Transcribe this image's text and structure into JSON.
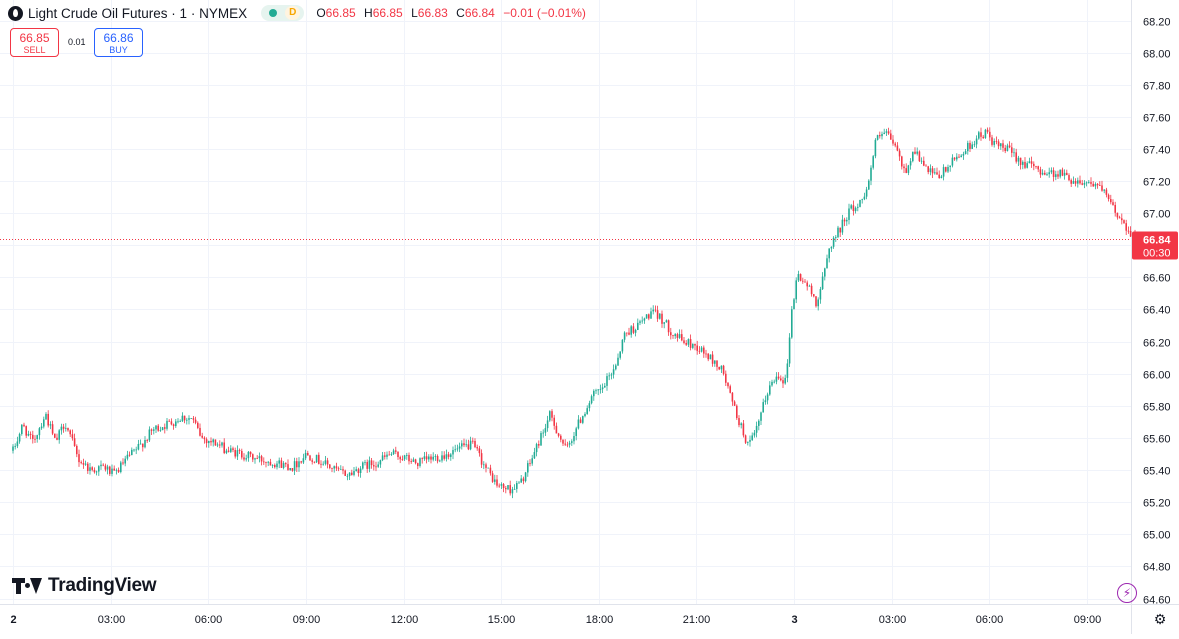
{
  "legend": {
    "symbol_title": "Light Crude Oil Futures · 1 · NYMEX",
    "badge_d": "D",
    "o_label": "O",
    "o_value": "66.85",
    "h_label": "H",
    "h_value": "66.85",
    "l_label": "L",
    "l_value": "66.83",
    "c_label": "C",
    "c_value": "66.84",
    "change": "−0.01 (−0.01%)"
  },
  "trade": {
    "sell_price": "66.85",
    "sell_label": "SELL",
    "buy_price": "66.86",
    "buy_label": "BUY",
    "spread": "0.01"
  },
  "branding": {
    "logo_text": "TradingView"
  },
  "icons": {
    "logo": "tradingview-logo-icon",
    "symbol": "oil-drop-icon",
    "status": "market-open-dot-icon",
    "bolt": "lightning-bolt-icon",
    "settings": "gear-icon"
  },
  "colors": {
    "up": "#22ab94",
    "down": "#f23645",
    "sell": "#f23645",
    "buy": "#2962ff",
    "grid": "#f0f3fa",
    "text": "#131722",
    "bolt": "#9c27b0"
  },
  "price_label": {
    "price": "66.84",
    "countdown": "00:30"
  },
  "chart_data": {
    "type": "candlestick",
    "title": "Light Crude Oil Futures · 1 · NYMEX",
    "interval": "1 minute",
    "y_ticks": [
      "68.20",
      "68.00",
      "67.80",
      "67.60",
      "67.40",
      "67.20",
      "67.00",
      "66.80",
      "66.60",
      "66.40",
      "66.20",
      "66.00",
      "65.80",
      "65.60",
      "65.40",
      "65.20",
      "65.00",
      "64.80",
      "64.60"
    ],
    "ylim": [
      64.57,
      68.27
    ],
    "x_ticks": [
      {
        "label": "2",
        "hour": 0,
        "bold": true
      },
      {
        "label": "03:00",
        "hour": 3
      },
      {
        "label": "06:00",
        "hour": 6
      },
      {
        "label": "09:00",
        "hour": 9
      },
      {
        "label": "12:00",
        "hour": 12
      },
      {
        "label": "15:00",
        "hour": 15
      },
      {
        "label": "18:00",
        "hour": 18
      },
      {
        "label": "21:00",
        "hour": 21
      },
      {
        "label": "3",
        "hour": 24,
        "bold": true
      },
      {
        "label": "03:00",
        "hour": 27
      },
      {
        "label": "06:00",
        "hour": 30
      },
      {
        "label": "09:00",
        "hour": 33
      }
    ],
    "xlim_hours": [
      -0.3,
      35.2
    ],
    "last_hour": 34.5,
    "last_price": 66.84,
    "path_points": [
      [
        0,
        65.52
      ],
      [
        0.3,
        65.68
      ],
      [
        0.6,
        65.57
      ],
      [
        1.0,
        65.75
      ],
      [
        1.3,
        65.57
      ],
      [
        1.6,
        65.7
      ],
      [
        2.0,
        65.47
      ],
      [
        2.4,
        65.4
      ],
      [
        2.8,
        65.42
      ],
      [
        3.1,
        65.37
      ],
      [
        3.5,
        65.47
      ],
      [
        3.9,
        65.55
      ],
      [
        4.3,
        65.65
      ],
      [
        4.9,
        65.7
      ],
      [
        5.2,
        65.73
      ],
      [
        5.5,
        65.72
      ],
      [
        5.8,
        65.6
      ],
      [
        6.2,
        65.57
      ],
      [
        6.6,
        65.52
      ],
      [
        7.0,
        65.5
      ],
      [
        7.5,
        65.47
      ],
      [
        8.0,
        65.45
      ],
      [
        8.6,
        65.42
      ],
      [
        9.0,
        65.5
      ],
      [
        9.5,
        65.45
      ],
      [
        9.9,
        65.4
      ],
      [
        10.3,
        65.37
      ],
      [
        10.7,
        65.42
      ],
      [
        11.2,
        65.45
      ],
      [
        11.6,
        65.5
      ],
      [
        12.0,
        65.48
      ],
      [
        12.4,
        65.44
      ],
      [
        12.8,
        65.47
      ],
      [
        13.2,
        65.49
      ],
      [
        13.7,
        65.53
      ],
      [
        14.1,
        65.56
      ],
      [
        14.3,
        65.5
      ],
      [
        14.5,
        65.42
      ],
      [
        14.9,
        65.3
      ],
      [
        15.3,
        65.28
      ],
      [
        15.6,
        65.32
      ],
      [
        15.9,
        65.45
      ],
      [
        16.2,
        65.6
      ],
      [
        16.5,
        65.74
      ],
      [
        17.0,
        65.52
      ],
      [
        17.3,
        65.66
      ],
      [
        17.8,
        65.86
      ],
      [
        18.1,
        65.9
      ],
      [
        18.5,
        66.05
      ],
      [
        18.8,
        66.25
      ],
      [
        19.2,
        66.3
      ],
      [
        19.6,
        66.38
      ],
      [
        19.9,
        66.35
      ],
      [
        20.2,
        66.27
      ],
      [
        20.6,
        66.2
      ],
      [
        21.0,
        66.17
      ],
      [
        21.4,
        66.1
      ],
      [
        21.8,
        66.02
      ],
      [
        22.1,
        65.82
      ],
      [
        22.4,
        65.65
      ],
      [
        22.6,
        65.55
      ],
      [
        22.8,
        65.62
      ],
      [
        23.2,
        65.9
      ],
      [
        23.5,
        66.0
      ],
      [
        23.75,
        65.95
      ],
      [
        23.9,
        66.35
      ],
      [
        24.1,
        66.62
      ],
      [
        24.4,
        66.55
      ],
      [
        24.7,
        66.44
      ],
      [
        24.9,
        66.6
      ],
      [
        25.1,
        66.8
      ],
      [
        25.4,
        66.9
      ],
      [
        25.7,
        67.02
      ],
      [
        26.0,
        67.05
      ],
      [
        26.3,
        67.2
      ],
      [
        26.5,
        67.45
      ],
      [
        26.8,
        67.5
      ],
      [
        27.1,
        67.42
      ],
      [
        27.4,
        67.25
      ],
      [
        27.7,
        67.4
      ],
      [
        28.0,
        67.28
      ],
      [
        28.4,
        67.22
      ],
      [
        28.7,
        67.28
      ],
      [
        29.0,
        67.35
      ],
      [
        29.3,
        67.4
      ],
      [
        29.6,
        67.47
      ],
      [
        29.9,
        67.5
      ],
      [
        30.2,
        67.42
      ],
      [
        30.6,
        67.39
      ],
      [
        31.0,
        67.32
      ],
      [
        31.4,
        67.28
      ],
      [
        31.8,
        67.25
      ],
      [
        32.2,
        67.25
      ],
      [
        32.6,
        67.2
      ],
      [
        32.9,
        67.2
      ],
      [
        33.3,
        67.18
      ],
      [
        33.6,
        67.1
      ],
      [
        33.9,
        67.0
      ],
      [
        34.2,
        66.92
      ],
      [
        34.5,
        66.84
      ]
    ],
    "up_color": "#22ab94",
    "down_color": "#f23645"
  }
}
